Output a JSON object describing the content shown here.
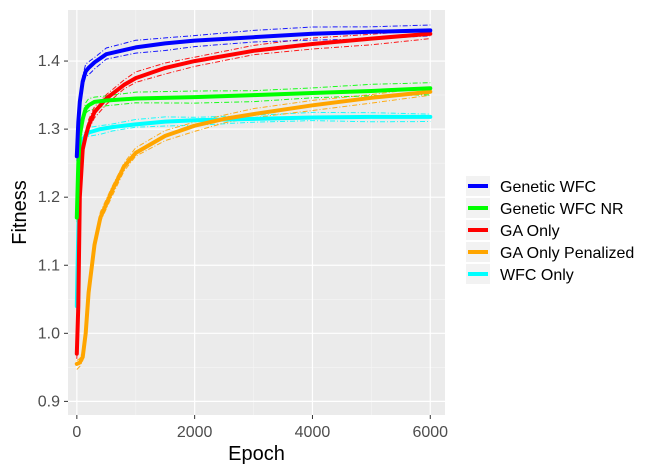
{
  "chart_data": {
    "type": "line",
    "title": "",
    "xlabel": "Epoch",
    "ylabel": "Fitness",
    "xlim": [
      -150,
      6250
    ],
    "ylim": [
      0.88,
      1.475
    ],
    "x_ticks": [
      "0",
      "2000",
      "4000",
      "6000"
    ],
    "x_tick_values": [
      0,
      2000,
      4000,
      6000
    ],
    "y_ticks": [
      "0.9",
      "1.0",
      "1.1",
      "1.2",
      "1.3",
      "1.4"
    ],
    "y_tick_values": [
      0.9,
      1.0,
      1.1,
      1.2,
      1.3,
      1.4
    ],
    "grid": true,
    "legend_position": "right",
    "colors": {
      "panel": "#ebebeb",
      "grid_major": "#ffffff",
      "grid_minor": "#f5f5f5"
    },
    "series": [
      {
        "name": "WFC Only",
        "color": "#00ffff",
        "x": [
          0,
          50,
          100,
          200,
          400,
          600,
          1000,
          1500,
          2000,
          3000,
          4000,
          5000,
          6000
        ],
        "y": [
          1.04,
          1.26,
          1.285,
          1.295,
          1.3,
          1.303,
          1.307,
          1.311,
          1.313,
          1.315,
          1.317,
          1.318,
          1.318
        ]
      },
      {
        "name": "GA Only Penalized",
        "color": "#ffa500",
        "x": [
          0,
          50,
          100,
          150,
          200,
          300,
          400,
          600,
          800,
          1000,
          1500,
          2000,
          2500,
          3000,
          4000,
          5000,
          6000
        ],
        "y": [
          0.955,
          0.957,
          0.965,
          1.0,
          1.06,
          1.13,
          1.17,
          1.21,
          1.245,
          1.265,
          1.29,
          1.305,
          1.315,
          1.322,
          1.335,
          1.346,
          1.355
        ]
      },
      {
        "name": "GA Only",
        "color": "#ff0000",
        "x": [
          0,
          25,
          50,
          100,
          150,
          200,
          300,
          500,
          800,
          1000,
          1500,
          2000,
          3000,
          4000,
          5000,
          6000
        ],
        "y": [
          0.97,
          1.04,
          1.2,
          1.27,
          1.29,
          1.305,
          1.325,
          1.345,
          1.365,
          1.375,
          1.39,
          1.4,
          1.415,
          1.425,
          1.433,
          1.44
        ]
      },
      {
        "name": "Genetic WFC NR",
        "color": "#00ff00",
        "x": [
          0,
          25,
          50,
          100,
          150,
          200,
          300,
          500,
          1000,
          2000,
          3000,
          4000,
          5000,
          6000
        ],
        "y": [
          1.17,
          1.25,
          1.29,
          1.315,
          1.33,
          1.335,
          1.34,
          1.342,
          1.345,
          1.347,
          1.35,
          1.353,
          1.356,
          1.36
        ]
      },
      {
        "name": "Genetic WFC",
        "color": "#0000ff",
        "x": [
          0,
          25,
          50,
          100,
          150,
          200,
          300,
          500,
          1000,
          1500,
          2000,
          3000,
          4000,
          5000,
          6000
        ],
        "y": [
          1.26,
          1.31,
          1.34,
          1.37,
          1.385,
          1.39,
          1.398,
          1.41,
          1.42,
          1.426,
          1.43,
          1.435,
          1.44,
          1.443,
          1.445
        ]
      }
    ],
    "legend": [
      "Genetic WFC",
      "Genetic WFC NR",
      "GA Only",
      "GA Only Penalized",
      "WFC Only"
    ]
  }
}
